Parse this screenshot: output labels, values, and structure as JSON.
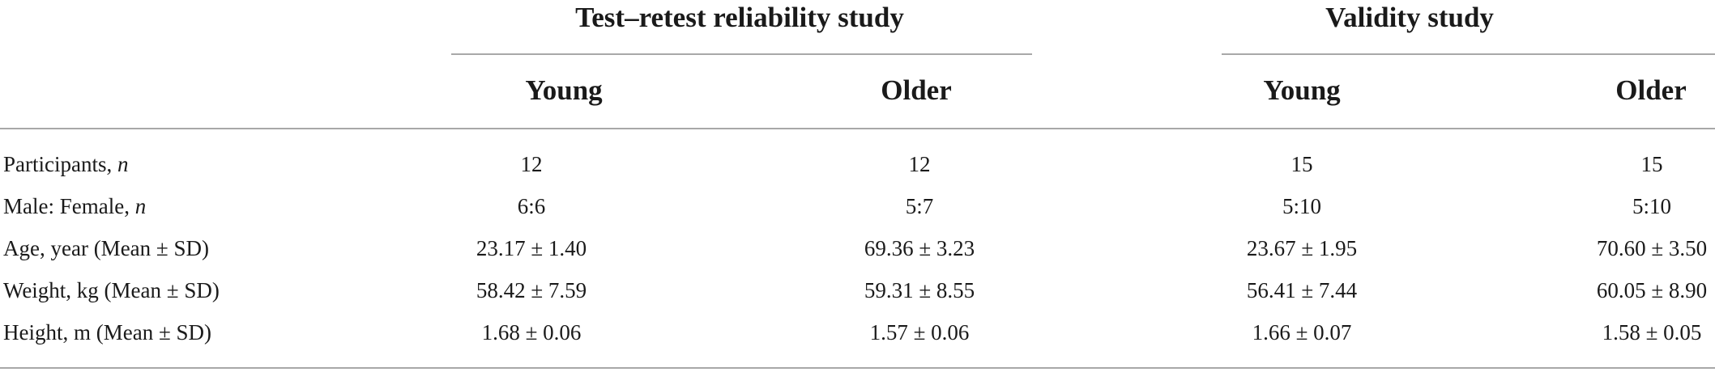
{
  "groups": [
    {
      "title": "Test–retest reliability study"
    },
    {
      "title": "Validity study"
    }
  ],
  "subheaders": [
    "Young",
    "Older",
    "Young",
    "Older"
  ],
  "rows": [
    {
      "label": "Participants,",
      "label_italic": "n",
      "values": [
        "12",
        "12",
        "15",
        "15"
      ]
    },
    {
      "label": "Male: Female,",
      "label_italic": "n",
      "values": [
        "6:6",
        "5:7",
        "5:10",
        "5:10"
      ]
    },
    {
      "label": "Age, year (Mean ± SD)",
      "label_italic": "",
      "values": [
        "23.17 ± 1.40",
        "69.36 ± 3.23",
        "23.67 ± 1.95",
        "70.60 ± 3.50"
      ]
    },
    {
      "label": "Weight, kg (Mean ± SD)",
      "label_italic": "",
      "values": [
        "58.42 ± 7.59",
        "59.31 ± 8.55",
        "56.41 ± 7.44",
        "60.05 ± 8.90"
      ]
    },
    {
      "label": "Height, m (Mean ± SD)",
      "label_italic": "",
      "values": [
        "1.68 ± 0.06",
        "1.57 ± 0.06",
        "1.66 ± 0.07",
        "1.58 ± 0.05"
      ]
    }
  ]
}
